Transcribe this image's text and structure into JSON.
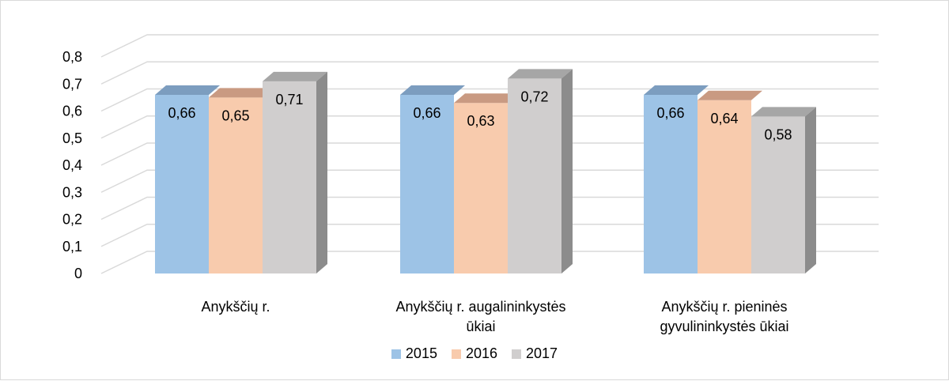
{
  "chart_data": {
    "type": "bar",
    "categories": [
      [
        "Anykščių r."
      ],
      [
        "Anykščių r. augalininkystės",
        "ūkiai"
      ],
      [
        "Anykščių r. pieninės",
        "gyvulininkystės ūkiai"
      ]
    ],
    "series": [
      {
        "name": "2015",
        "values": [
          0.66,
          0.66,
          0.66
        ],
        "labels": [
          "0,66",
          "0,66",
          "0,66"
        ],
        "color": "#9DC3E6",
        "top_color": "#7C9DBF",
        "side_color": "#6F8FB0"
      },
      {
        "name": "2016",
        "values": [
          0.65,
          0.63,
          0.64
        ],
        "labels": [
          "0,65",
          "0,63",
          "0,64"
        ],
        "color": "#F8CBAD",
        "top_color": "#C99A82",
        "side_color": "#B48970"
      },
      {
        "name": "2017",
        "values": [
          0.71,
          0.72,
          0.58
        ],
        "labels": [
          "0,71",
          "0,72",
          "0,58"
        ],
        "color": "#D0CECE",
        "top_color": "#A6A6A6",
        "side_color": "#8C8C8C"
      }
    ],
    "ylim": [
      0,
      0.8
    ],
    "yticks": [
      "0",
      "0,1",
      "0,2",
      "0,3",
      "0,4",
      "0,5",
      "0,6",
      "0,7",
      "0,8"
    ],
    "grid": true,
    "three_d": true,
    "legend_position": "bottom",
    "title": "",
    "xlabel": "",
    "ylabel": ""
  }
}
